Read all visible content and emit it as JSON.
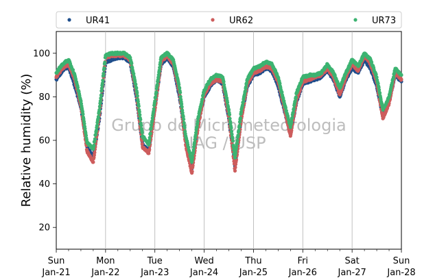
{
  "chart_data": {
    "type": "scatter",
    "ylabel": "Relative humidity (%)",
    "ylim": [
      10,
      110
    ],
    "yticks": [
      20,
      40,
      60,
      80,
      100
    ],
    "xlim": [
      "2024-01-21T00:00",
      "2024-01-28T00:00"
    ],
    "xtick_labels": [
      {
        "day": "Sun",
        "date": "Jan-21"
      },
      {
        "day": "Mon",
        "date": "Jan-22"
      },
      {
        "day": "Tue",
        "date": "Jan-23"
      },
      {
        "day": "Wed",
        "date": "Jan-24"
      },
      {
        "day": "Thu",
        "date": "Jan-25"
      },
      {
        "day": "Fri",
        "date": "Jan-26"
      },
      {
        "day": "Sat",
        "date": "Jan-27"
      },
      {
        "day": "Sun",
        "date": "Jan-28"
      }
    ],
    "grid": "vertical at day boundaries",
    "legend_placement": "top",
    "watermark": [
      "Grupo de Micrometeorologia",
      "IAG / USP"
    ],
    "series": [
      {
        "name": "UR41",
        "color": "#1f4e8c",
        "x": [
          "2024-01-21T00:00",
          "2024-01-21T03:00",
          "2024-01-21T06:00",
          "2024-01-21T09:00",
          "2024-01-21T12:00",
          "2024-01-21T15:00",
          "2024-01-21T18:00",
          "2024-01-21T21:00",
          "2024-01-22T00:00",
          "2024-01-22T03:00",
          "2024-01-22T06:00",
          "2024-01-22T09:00",
          "2024-01-22T12:00",
          "2024-01-22T15:00",
          "2024-01-22T18:00",
          "2024-01-22T21:00",
          "2024-01-23T00:00",
          "2024-01-23T03:00",
          "2024-01-23T06:00",
          "2024-01-23T09:00",
          "2024-01-23T12:00",
          "2024-01-23T15:00",
          "2024-01-23T18:00",
          "2024-01-23T21:00",
          "2024-01-24T00:00",
          "2024-01-24T03:00",
          "2024-01-24T06:00",
          "2024-01-24T09:00",
          "2024-01-24T12:00",
          "2024-01-24T15:00",
          "2024-01-24T18:00",
          "2024-01-24T21:00",
          "2024-01-25T00:00",
          "2024-01-25T03:00",
          "2024-01-25T06:00",
          "2024-01-25T09:00",
          "2024-01-25T12:00",
          "2024-01-25T15:00",
          "2024-01-25T18:00",
          "2024-01-25T21:00",
          "2024-01-26T00:00",
          "2024-01-26T03:00",
          "2024-01-26T06:00",
          "2024-01-26T09:00",
          "2024-01-26T12:00",
          "2024-01-26T15:00",
          "2024-01-26T18:00",
          "2024-01-26T21:00",
          "2024-01-27T00:00",
          "2024-01-27T03:00",
          "2024-01-27T06:00",
          "2024-01-27T09:00",
          "2024-01-27T12:00",
          "2024-01-27T15:00",
          "2024-01-27T18:00",
          "2024-01-27T21:00",
          "2024-01-28T00:00"
        ],
        "values": [
          88,
          92,
          94,
          85,
          75,
          57,
          52,
          70,
          96,
          97,
          98,
          98,
          96,
          80,
          58,
          55,
          75,
          95,
          98,
          94,
          80,
          60,
          47,
          68,
          80,
          85,
          88,
          86,
          70,
          48,
          70,
          85,
          90,
          91,
          93,
          92,
          85,
          74,
          63,
          78,
          86,
          87,
          88,
          89,
          92,
          88,
          80,
          88,
          93,
          91,
          97,
          93,
          85,
          71,
          78,
          90,
          87
        ]
      },
      {
        "name": "UR62",
        "color": "#cd5c5c",
        "x": [
          "2024-01-21T00:00",
          "2024-01-21T03:00",
          "2024-01-21T06:00",
          "2024-01-21T09:00",
          "2024-01-21T12:00",
          "2024-01-21T15:00",
          "2024-01-21T18:00",
          "2024-01-21T21:00",
          "2024-01-22T00:00",
          "2024-01-22T03:00",
          "2024-01-22T06:00",
          "2024-01-22T09:00",
          "2024-01-22T12:00",
          "2024-01-22T15:00",
          "2024-01-22T18:00",
          "2024-01-22T21:00",
          "2024-01-23T00:00",
          "2024-01-23T03:00",
          "2024-01-23T06:00",
          "2024-01-23T09:00",
          "2024-01-23T12:00",
          "2024-01-23T15:00",
          "2024-01-23T18:00",
          "2024-01-23T21:00",
          "2024-01-24T00:00",
          "2024-01-24T03:00",
          "2024-01-24T06:00",
          "2024-01-24T09:00",
          "2024-01-24T12:00",
          "2024-01-24T15:00",
          "2024-01-24T18:00",
          "2024-01-24T21:00",
          "2024-01-25T00:00",
          "2024-01-25T03:00",
          "2024-01-25T06:00",
          "2024-01-25T09:00",
          "2024-01-25T12:00",
          "2024-01-25T15:00",
          "2024-01-25T18:00",
          "2024-01-25T21:00",
          "2024-01-26T00:00",
          "2024-01-26T03:00",
          "2024-01-26T06:00",
          "2024-01-26T09:00",
          "2024-01-26T12:00",
          "2024-01-26T15:00",
          "2024-01-26T18:00",
          "2024-01-26T21:00",
          "2024-01-27T00:00",
          "2024-01-27T03:00",
          "2024-01-27T06:00",
          "2024-01-27T09:00",
          "2024-01-27T12:00",
          "2024-01-27T15:00",
          "2024-01-27T18:00",
          "2024-01-27T21:00",
          "2024-01-28T00:00"
        ],
        "values": [
          89,
          93,
          95,
          88,
          76,
          55,
          50,
          72,
          98,
          99,
          99,
          99,
          97,
          82,
          57,
          54,
          74,
          96,
          99,
          95,
          82,
          58,
          45,
          66,
          81,
          86,
          88,
          87,
          71,
          46,
          69,
          86,
          91,
          92,
          94,
          93,
          87,
          75,
          62,
          79,
          87,
          88,
          89,
          90,
          93,
          89,
          81,
          89,
          95,
          92,
          99,
          95,
          87,
          70,
          77,
          91,
          88
        ]
      },
      {
        "name": "UR73",
        "color": "#3cb371",
        "x": [
          "2024-01-21T00:00",
          "2024-01-21T03:00",
          "2024-01-21T06:00",
          "2024-01-21T09:00",
          "2024-01-21T12:00",
          "2024-01-21T15:00",
          "2024-01-21T18:00",
          "2024-01-21T21:00",
          "2024-01-22T00:00",
          "2024-01-22T03:00",
          "2024-01-22T06:00",
          "2024-01-22T09:00",
          "2024-01-22T12:00",
          "2024-01-22T15:00",
          "2024-01-22T18:00",
          "2024-01-22T21:00",
          "2024-01-23T00:00",
          "2024-01-23T03:00",
          "2024-01-23T06:00",
          "2024-01-23T09:00",
          "2024-01-23T12:00",
          "2024-01-23T15:00",
          "2024-01-23T18:00",
          "2024-01-23T21:00",
          "2024-01-24T00:00",
          "2024-01-24T03:00",
          "2024-01-24T06:00",
          "2024-01-24T09:00",
          "2024-01-24T12:00",
          "2024-01-24T15:00",
          "2024-01-24T18:00",
          "2024-01-24T21:00",
          "2024-01-25T00:00",
          "2024-01-25T03:00",
          "2024-01-25T06:00",
          "2024-01-25T09:00",
          "2024-01-25T12:00",
          "2024-01-25T15:00",
          "2024-01-25T18:00",
          "2024-01-25T21:00",
          "2024-01-26T00:00",
          "2024-01-26T03:00",
          "2024-01-26T06:00",
          "2024-01-26T09:00",
          "2024-01-26T12:00",
          "2024-01-26T15:00",
          "2024-01-26T18:00",
          "2024-01-26T21:00",
          "2024-01-27T00:00",
          "2024-01-27T03:00",
          "2024-01-27T06:00",
          "2024-01-27T09:00",
          "2024-01-27T12:00",
          "2024-01-27T15:00",
          "2024-01-27T18:00",
          "2024-01-27T21:00",
          "2024-01-28T00:00"
        ],
        "values": [
          91,
          95,
          97,
          90,
          78,
          59,
          56,
          74,
          99,
          100,
          100,
          100,
          98,
          84,
          62,
          58,
          78,
          98,
          100,
          97,
          84,
          62,
          50,
          70,
          83,
          88,
          90,
          89,
          74,
          52,
          73,
          88,
          93,
          94,
          96,
          95,
          89,
          77,
          66,
          82,
          89,
          90,
          90,
          91,
          95,
          91,
          84,
          91,
          97,
          94,
          100,
          97,
          89,
          74,
          80,
          93,
          90
        ]
      }
    ]
  }
}
